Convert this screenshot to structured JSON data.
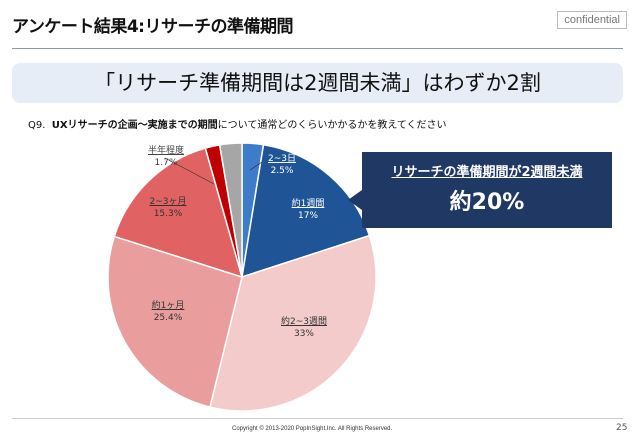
{
  "header": {
    "title": "アンケート結果4:リサーチの準備期間",
    "badge": "confidential"
  },
  "banner": {
    "text": "「リサーチ準備期間は2週間未満」はわずか2割"
  },
  "question": {
    "number": "Q9.",
    "bold": "UXリサーチの企画〜実施までの期間",
    "rest": "について通常どのくらいかかるかを教えてください"
  },
  "callout": {
    "line1": "リサーチの準備期間が2週間未満",
    "line2": "約20%"
  },
  "chart_data": {
    "type": "pie",
    "title": "",
    "start": "top",
    "direction": "clockwise",
    "slices": [
      {
        "label": "2~3日",
        "value": 2.5,
        "display": "2.5%",
        "color": "#3d7cc9"
      },
      {
        "label": "約1週間",
        "value": 17,
        "display": "17%",
        "color": "#1f5597"
      },
      {
        "label": "約2~3週間",
        "value": 33,
        "display": "33%",
        "color": "#f4cbcb"
      },
      {
        "label": "約1ヶ月",
        "value": 25.4,
        "display": "25.4%",
        "color": "#ea9d9d"
      },
      {
        "label": "2~3ヶ月",
        "value": 15.3,
        "display": "15.3%",
        "color": "#e06262"
      },
      {
        "label": "半年程度",
        "value": 1.7,
        "display": "1.7%",
        "color": "#c00000"
      },
      {
        "label": "",
        "value": 2.6,
        "display": "",
        "color": "#a6a6a6"
      }
    ]
  },
  "footer": {
    "copyright": "Copyright © 2013-2020  PopInSight.Inc.  All Rights Reserved.",
    "page": "25"
  }
}
